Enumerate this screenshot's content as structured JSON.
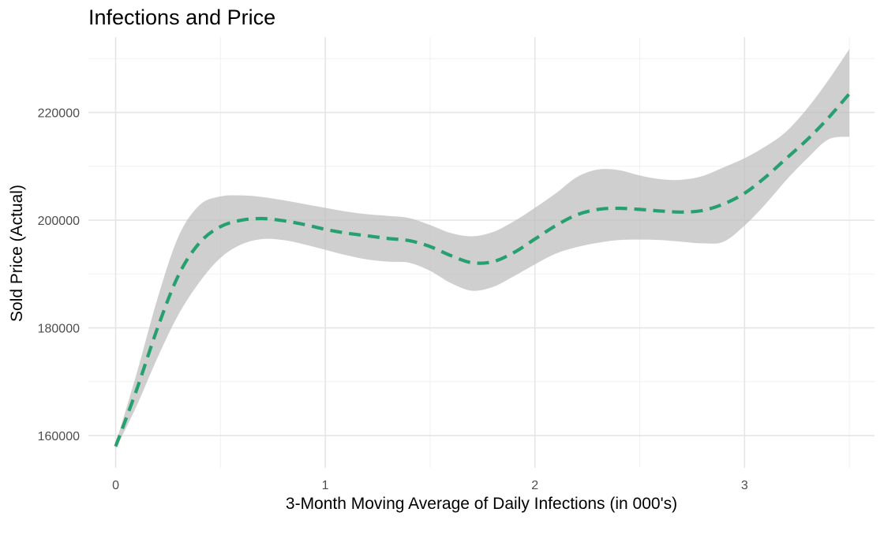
{
  "chart_data": {
    "type": "line",
    "title": "Infections and Price",
    "xlabel": "3-Month Moving Average of Daily Infections (in 000's)",
    "ylabel": "Sold Price (Actual)",
    "xlim": [
      -0.13,
      3.62
    ],
    "ylim": [
      154000,
      234000
    ],
    "x_ticks": [
      0,
      1,
      2,
      3
    ],
    "x_tick_labels": [
      "0",
      "1",
      "2",
      "3"
    ],
    "y_ticks": [
      160000,
      180000,
      200000,
      220000
    ],
    "y_tick_labels": [
      "160000",
      "180000",
      "200000",
      "220000"
    ],
    "grid": true,
    "legend": "none",
    "colors": {
      "line": "#26a06f",
      "band": "#bdbdbd"
    },
    "series": [
      {
        "x": [
          0,
          0.1,
          0.2,
          0.3,
          0.4,
          0.5,
          0.6,
          0.7,
          0.8,
          0.9,
          1.0,
          1.1,
          1.2,
          1.3,
          1.4,
          1.5,
          1.6,
          1.7,
          1.8,
          1.9,
          2.0,
          2.1,
          2.2,
          2.3,
          2.4,
          2.5,
          2.6,
          2.7,
          2.8,
          2.9,
          3.0,
          3.1,
          3.2,
          3.3,
          3.4,
          3.5
        ],
        "y": [
          158000,
          168500,
          180000,
          189800,
          195800,
          198800,
          200000,
          200300,
          199900,
          199200,
          198300,
          197600,
          197100,
          196600,
          196200,
          195100,
          193400,
          192100,
          192300,
          194000,
          196500,
          199000,
          201000,
          202000,
          202200,
          202000,
          201700,
          201500,
          201800,
          203000,
          205000,
          208000,
          211500,
          215000,
          219000,
          223500
        ],
        "lower": [
          157500,
          165500,
          174500,
          182500,
          188500,
          193000,
          195500,
          196500,
          196300,
          195500,
          194500,
          193500,
          192700,
          192300,
          192100,
          190600,
          188300,
          186900,
          187600,
          189600,
          191800,
          193800,
          195000,
          195800,
          196300,
          196400,
          196300,
          196000,
          195700,
          196000,
          199000,
          203000,
          207500,
          211500,
          215000,
          215500
        ],
        "upper": [
          158500,
          171500,
          185500,
          197000,
          202800,
          204400,
          204600,
          204300,
          203700,
          203000,
          202300,
          201600,
          201100,
          200800,
          200400,
          199100,
          197600,
          197000,
          197800,
          199800,
          202300,
          205000,
          208000,
          209400,
          209300,
          208300,
          207600,
          207500,
          208200,
          209800,
          211500,
          213700,
          216500,
          220800,
          226000,
          231800
        ]
      }
    ]
  }
}
